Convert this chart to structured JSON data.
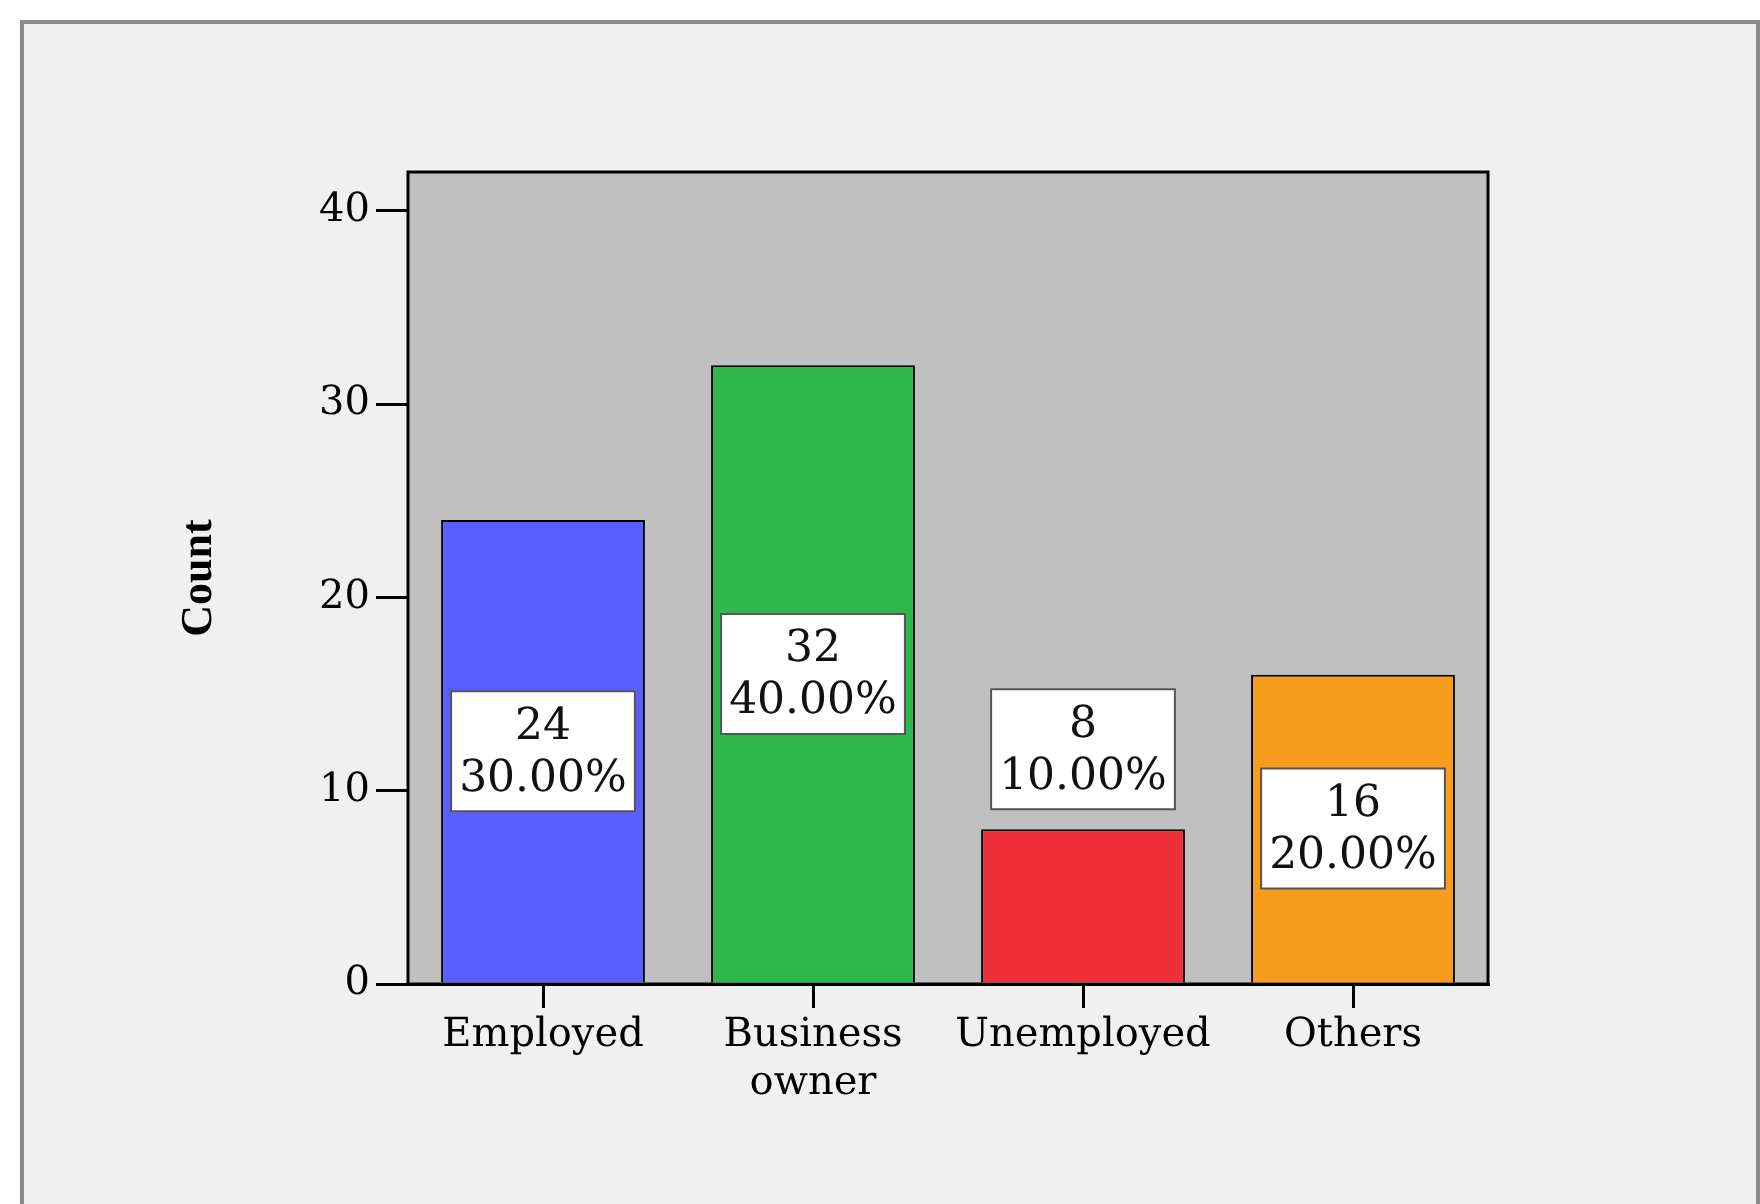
{
  "chart_data": {
    "type": "bar",
    "ylabel": "Count",
    "categories": [
      "Employed",
      "Business owner",
      "Unemployed",
      "Others"
    ],
    "values": [
      24,
      32,
      8,
      16
    ],
    "colors": [
      "#5a5eff",
      "#2eb84a",
      "#ef3038",
      "#f89c1e"
    ],
    "ylim": [
      0,
      42
    ],
    "yticks": [
      0,
      10,
      20,
      30,
      40
    ],
    "value_labels": [
      "24\n30.00%",
      "32\n40.00%",
      "8\n10.00%",
      "16\n20.00%"
    ]
  }
}
